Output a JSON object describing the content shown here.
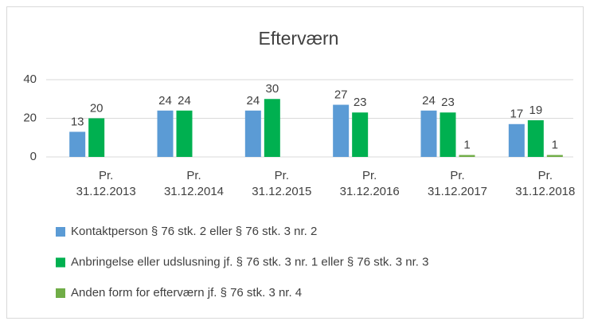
{
  "chart_data": {
    "type": "bar",
    "title": "Efterværn",
    "categories": [
      "Pr. 31.12.2013",
      "Pr. 31.12.2014",
      "Pr. 31.12.2015",
      "Pr. 31.12.2016",
      "Pr. 31.12.2017",
      "Pr. 31.12.2018"
    ],
    "series": [
      {
        "name": "Kontaktperson § 76 stk. 2 eller § 76 stk. 3 nr. 2",
        "color": "#5b9bd5",
        "values": [
          13,
          24,
          24,
          27,
          24,
          17
        ]
      },
      {
        "name": "Anbringelse eller udslusning jf. § 76 stk. 3 nr. 1 eller § 76 stk. 3 nr. 3",
        "color": "#00b050",
        "values": [
          20,
          24,
          30,
          23,
          23,
          19
        ]
      },
      {
        "name": "Anden form for efterværn jf. § 76 stk. 3 nr. 4",
        "color": "#70ad47",
        "values": [
          null,
          null,
          null,
          null,
          1,
          1
        ]
      }
    ],
    "ylim": [
      0,
      40
    ],
    "yticks": [
      0,
      20,
      40
    ],
    "grid": true,
    "legend": "bottom"
  }
}
